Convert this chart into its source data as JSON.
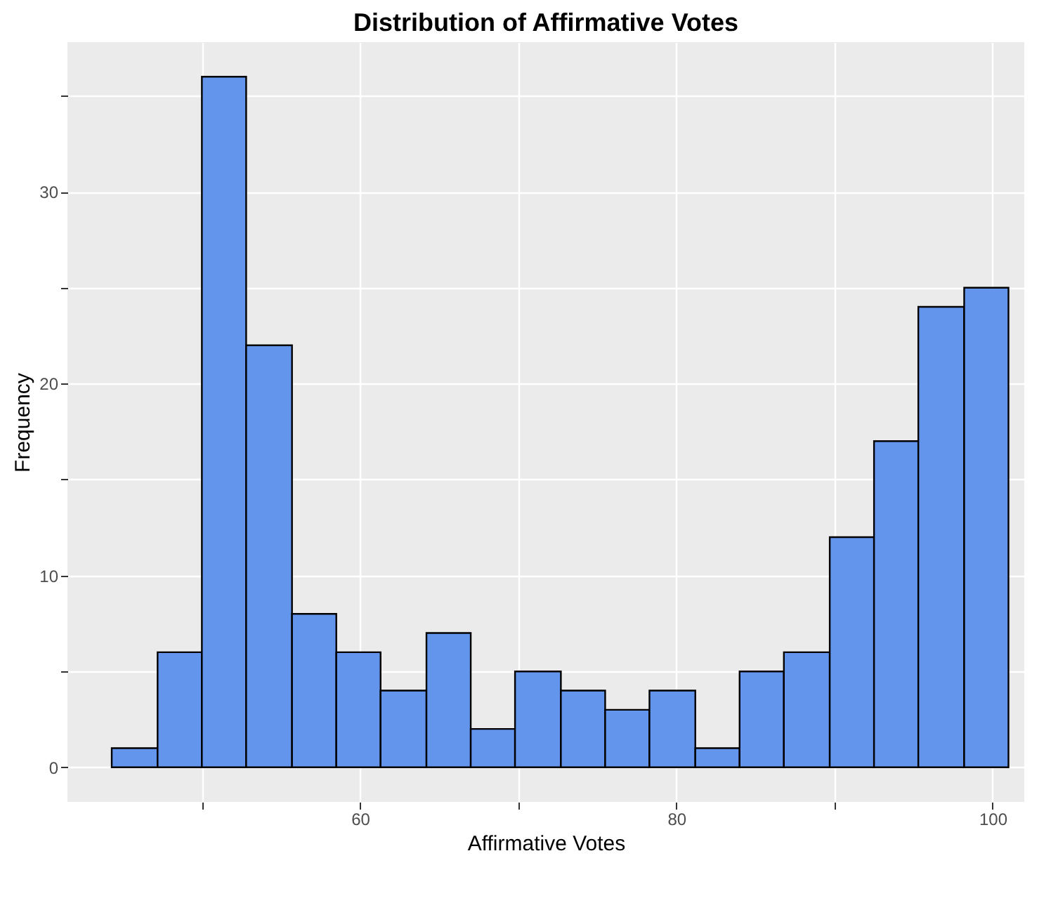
{
  "chart_data": {
    "type": "histogram",
    "title": "Distribution of Affirmative Votes",
    "xlabel": "Affirmative Votes",
    "ylabel": "Frequency",
    "bins": [
      44.3,
      47.2,
      50.0,
      52.8,
      55.7,
      58.5,
      61.3,
      64.2,
      67.0,
      69.8,
      72.7,
      75.5,
      78.3,
      81.2,
      84.0,
      86.8,
      89.7,
      92.5,
      95.3,
      98.2,
      101.0
    ],
    "values": [
      1,
      6,
      36,
      22,
      8,
      6,
      4,
      7,
      2,
      5,
      4,
      3,
      4,
      1,
      5,
      6,
      12,
      17,
      24,
      25
    ],
    "color": "#6495ed",
    "xlim": [
      41.5,
      102
    ],
    "ylim": [
      -1.8,
      37.8
    ],
    "xticks": [
      {
        "value": 50,
        "label": null
      },
      60,
      {
        "value": 70,
        "label": null
      },
      80,
      {
        "value": 90,
        "label": null
      },
      100
    ],
    "yticks": [
      0,
      {
        "value": 5,
        "label": null
      },
      10,
      {
        "value": 15,
        "label": null
      },
      20,
      {
        "value": 25,
        "label": null
      },
      30,
      {
        "value": 35,
        "label": null
      }
    ],
    "grid": true
  }
}
